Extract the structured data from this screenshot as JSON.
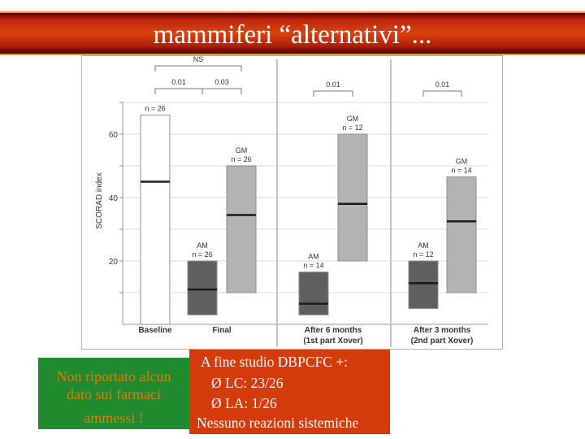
{
  "slide": {
    "title": "mammiferi “alternativi”..."
  },
  "chart_data": {
    "type": "boxplot",
    "ylabel": "SCORAD index",
    "yticks": [
      20,
      40,
      60
    ],
    "ylim": [
      0,
      70
    ],
    "groups": [
      {
        "label": "Baseline",
        "label_line2": ""
      },
      {
        "label": "Final",
        "label_line2": ""
      },
      {
        "label": "After 6 months",
        "label_line2": "(1st part Xover)"
      },
      {
        "label": "After 3 months",
        "label_line2": "(2nd part Xover)"
      }
    ],
    "boxes": [
      {
        "group": 0,
        "series": "Baseline",
        "name_label": "",
        "n_label": "n = 26",
        "low": 0,
        "high": 66,
        "median": 45,
        "color": "#ffffff"
      },
      {
        "group": 1,
        "series": "AM",
        "name_label": "AM",
        "n_label": "n = 26",
        "low": 3,
        "high": 20,
        "median": 11,
        "color": "#5f5f5f"
      },
      {
        "group": 1,
        "series": "GM",
        "name_label": "GM",
        "n_label": "n = 26",
        "low": 10,
        "high": 50,
        "median": 34.5,
        "color": "#b3b3b3"
      },
      {
        "group": 2,
        "series": "AM",
        "name_label": "AM",
        "n_label": "n = 14",
        "low": 3,
        "high": 16.5,
        "median": 6.5,
        "color": "#5f5f5f"
      },
      {
        "group": 2,
        "series": "GM",
        "name_label": "GM",
        "n_label": "n = 12",
        "low": 20,
        "high": 60,
        "median": 38,
        "color": "#b3b3b3"
      },
      {
        "group": 3,
        "series": "AM",
        "name_label": "AM",
        "n_label": "n = 12",
        "low": 5,
        "high": 20,
        "median": 13,
        "color": "#5f5f5f"
      },
      {
        "group": 3,
        "series": "GM",
        "name_label": "GM",
        "n_label": "n = 14",
        "low": 10,
        "high": 46.5,
        "median": 32.5,
        "color": "#b3b3b3"
      }
    ],
    "significance": [
      {
        "label": "NS",
        "from_box": 0,
        "to_box": 2
      },
      {
        "label": "0.01",
        "from_box": 0,
        "to_box": 1
      },
      {
        "label": "0.03",
        "from_box": 1,
        "to_box": 2
      },
      {
        "label": "0.01",
        "from_box": 3,
        "to_box": 4
      },
      {
        "label": "0.01",
        "from_box": 5,
        "to_box": 6
      }
    ],
    "grid": true
  },
  "notes": {
    "left_box": {
      "lines": [
        "Non riportato alcun",
        "dato sui farmaci",
        "ammessi !"
      ]
    },
    "right_box": {
      "lines": [
        "A fine studio DBPCFC +:",
        "Ø LC: 23/26",
        "Ø LA: 1/26",
        "Nessuno reazioni sistemiche"
      ]
    }
  }
}
